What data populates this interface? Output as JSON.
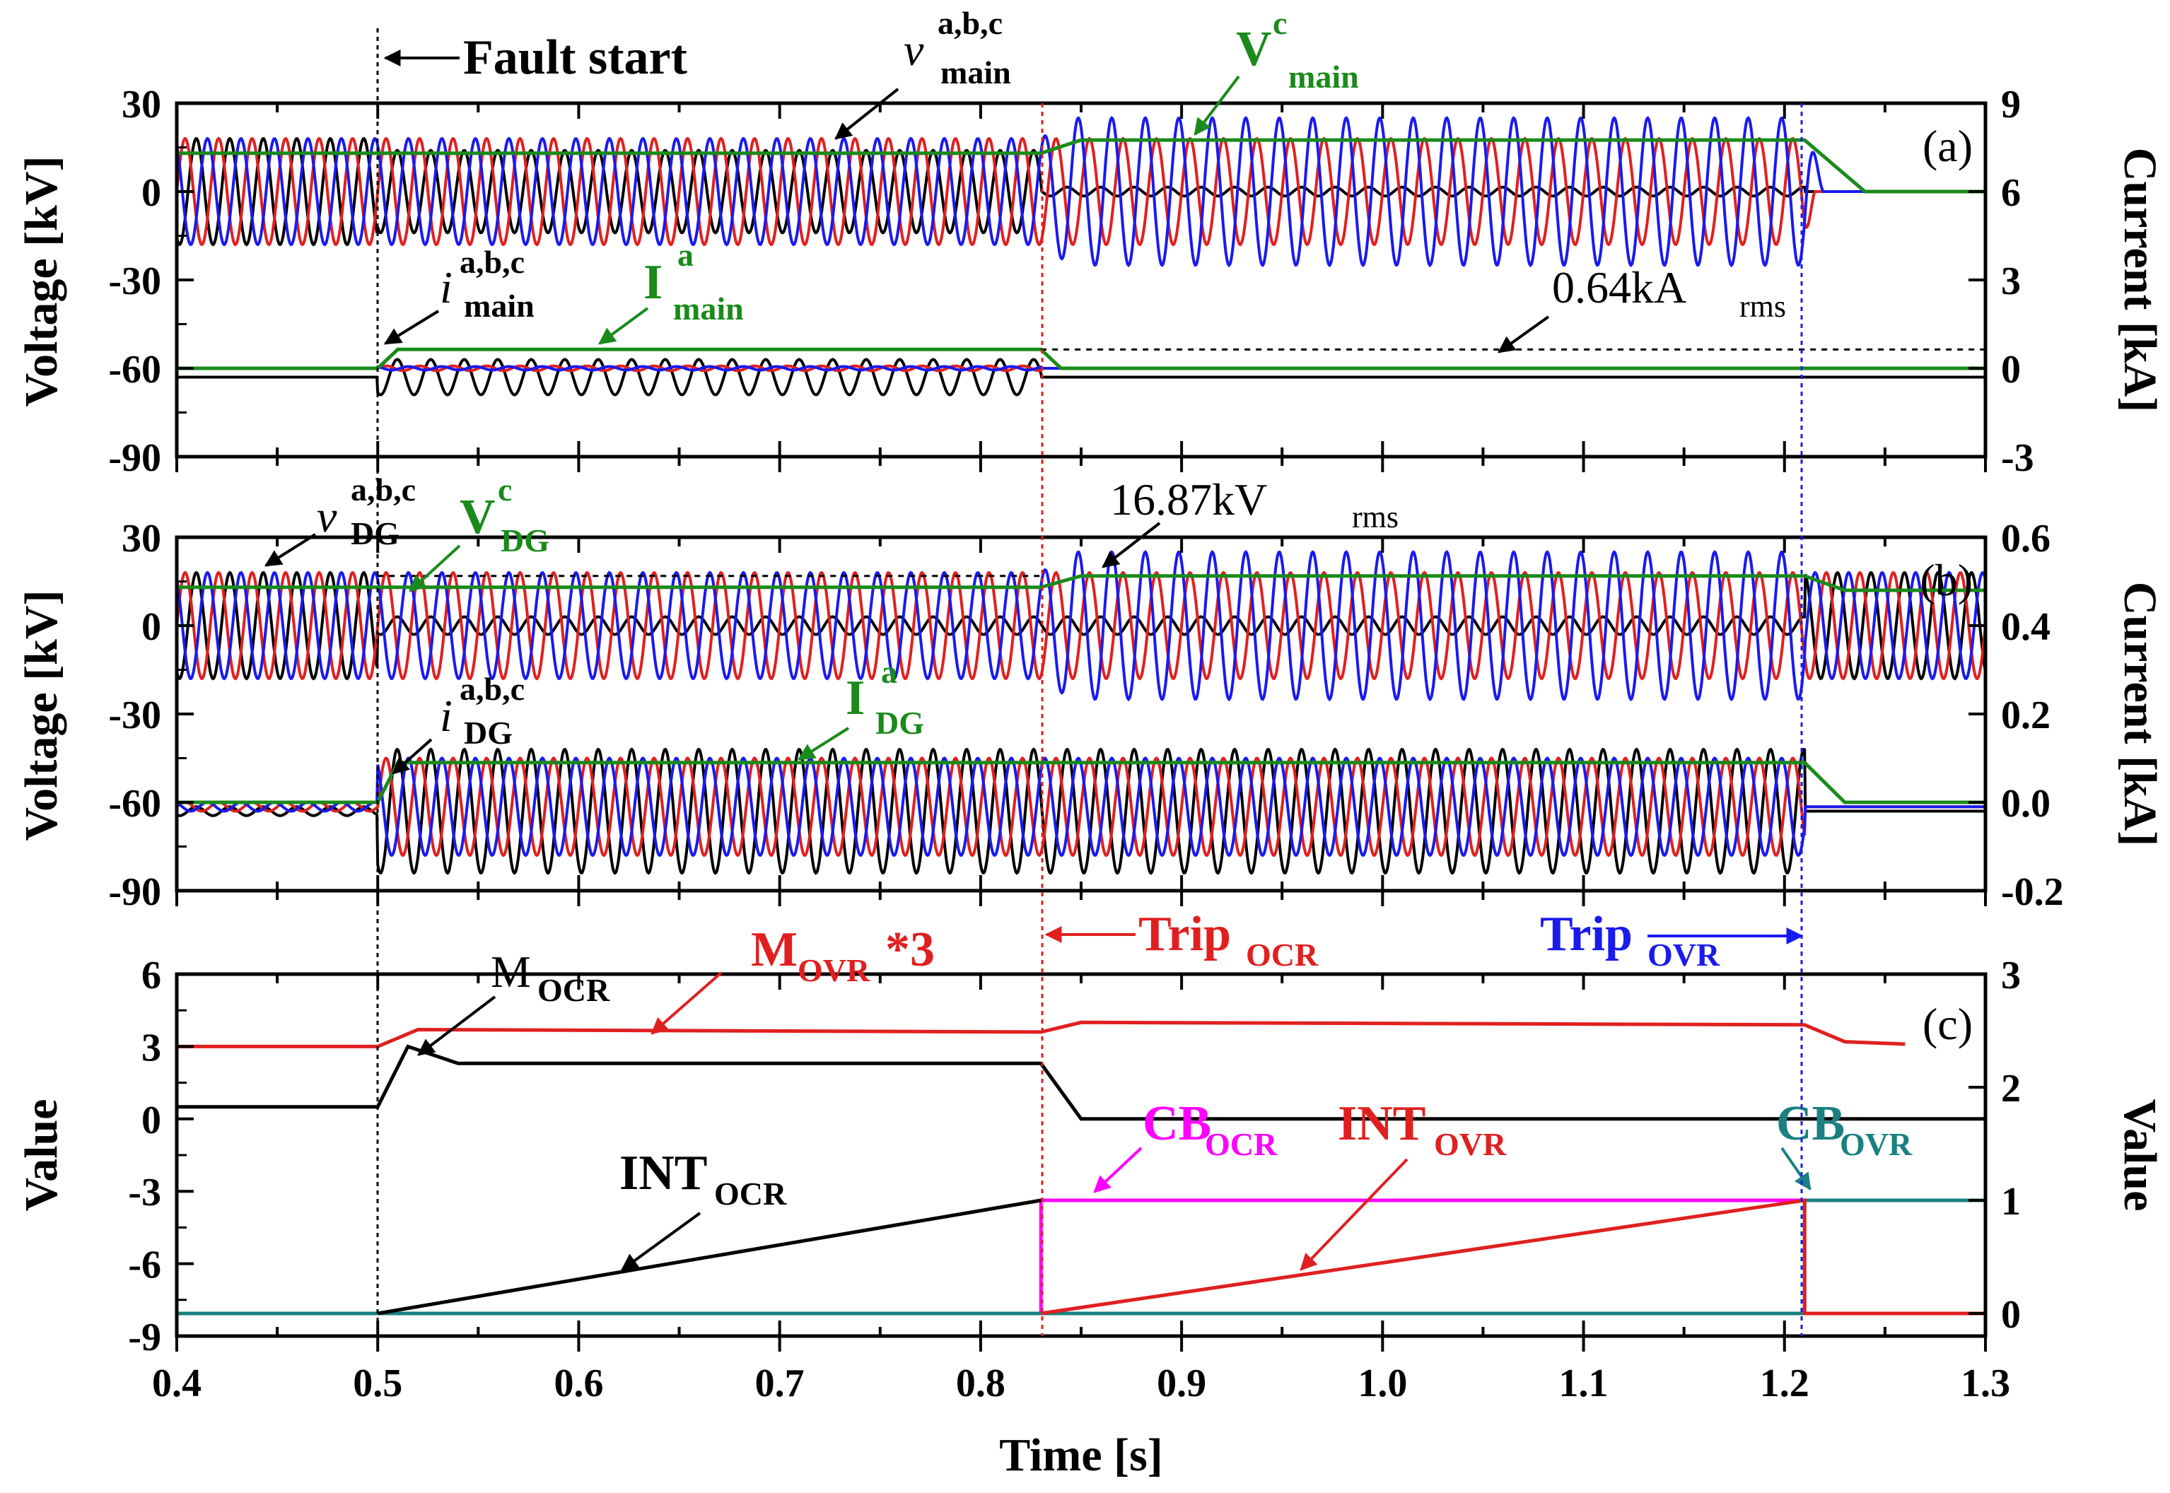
{
  "chart_data": [
    {
      "type": "line",
      "panel_label": "(a)",
      "xlabel": "Time [s]",
      "ylabel_left": "Voltage [kV]",
      "ylabel_right": "Current [kA]",
      "xlim": [
        0.4,
        1.3
      ],
      "ylim_left": [
        -90,
        30
      ],
      "ylim_right": [
        -3,
        9
      ],
      "yticks_left": [
        "30",
        "0",
        "-30",
        "-60",
        "-90"
      ],
      "yticks_right": [
        "9",
        "6",
        "3",
        "0",
        "-3"
      ],
      "annotations": {
        "fault_start": "Fault start",
        "v_main_sym": "v",
        "v_main_sup": "a,b,c",
        "v_main_sub": "main",
        "V_main_sym": "V",
        "V_main_sup": "c",
        "V_main_sub": "main",
        "i_main_sym": "i",
        "i_main_sup": "a,b,c",
        "i_main_sub": "main",
        "I_main_sym": "I",
        "I_main_sup": "a",
        "I_main_sub": "main",
        "rms_current": "0.64kA",
        "rms_sub": "rms"
      },
      "series": [
        {
          "name": "v_main a,b,c",
          "color": "#000000/#e02020/#1a1aee",
          "peak_kv": [
            18,
            18,
            25
          ],
          "segments": [
            "0.40-0.83: ±18 kV",
            "0.83-1.21: phase c ±25 kV, phase a ±18 kV, phase b ~0",
            "1.21-1.30: 0"
          ]
        },
        {
          "name": "V_main c (rms)",
          "color": "#1a8a1a",
          "values_kv": [
            [
              0.4,
              13
            ],
            [
              0.83,
              13
            ],
            [
              0.85,
              17.5
            ],
            [
              1.21,
              17.5
            ],
            [
              1.24,
              0
            ],
            [
              1.3,
              0
            ]
          ]
        },
        {
          "name": "i_main a,b,c",
          "color": "#000000/#e02020/#1a1aee",
          "axis": "right",
          "peak_ka": [
            0,
            0.9,
            0.9
          ],
          "segments": [
            "0.40-0.50: 0",
            "0.50-0.83: ±0.9 kA",
            "0.83-1.30: 0"
          ]
        },
        {
          "name": "I_main a (rms)",
          "color": "#1a8a1a",
          "axis": "right",
          "values_ka": [
            [
              0.4,
              0
            ],
            [
              0.5,
              0
            ],
            [
              0.51,
              0.64
            ],
            [
              0.83,
              0.64
            ],
            [
              0.84,
              0
            ],
            [
              1.3,
              0
            ]
          ]
        }
      ]
    },
    {
      "type": "line",
      "panel_label": "(b)",
      "xlabel": "Time [s]",
      "ylabel_left": "Voltage [kV]",
      "ylabel_right": "Current [kA]",
      "xlim": [
        0.4,
        1.3
      ],
      "ylim_left": [
        -90,
        30
      ],
      "ylim_right": [
        -0.2,
        0.6
      ],
      "yticks_left": [
        "30",
        "0",
        "-30",
        "-60",
        "-90"
      ],
      "yticks_right": [
        "0.6",
        "0.4",
        "0.2",
        "0.0",
        "-0.2"
      ],
      "annotations": {
        "v_dg_sym": "v",
        "v_dg_sup": "a,b,c",
        "v_dg_sub": "DG",
        "V_dg_sym": "V",
        "V_dg_sup": "c",
        "V_dg_sub": "DG",
        "rms_voltage": "16.87kV",
        "rms_sub": "rms",
        "i_dg_sym": "i",
        "i_dg_sup": "a,b,c",
        "i_dg_sub": "DG",
        "I_dg_sym": "I",
        "I_dg_sup": "a",
        "I_dg_sub": "DG"
      },
      "series": [
        {
          "name": "v_DG a,b,c",
          "color": "#000000/#e02020/#1a1aee",
          "peak_kv": [
            18,
            18,
            25
          ],
          "segments": [
            "0.40-0.83: ±18 kV",
            "0.83-1.21: phase c ±25 kV",
            "1.21-1.30: ±18 kV"
          ]
        },
        {
          "name": "V_DG c (rms)",
          "color": "#1a8a1a",
          "values_kv": [
            [
              0.4,
              13
            ],
            [
              0.83,
              13
            ],
            [
              0.85,
              16.87
            ],
            [
              1.21,
              16.87
            ],
            [
              1.23,
              12
            ],
            [
              1.3,
              12
            ]
          ]
        },
        {
          "name": "i_DG a,b,c",
          "color": "#000000/#e02020/#1a1aee",
          "axis": "right",
          "peak_ka": [
            0.14,
            0.11,
            0.11
          ],
          "segments": [
            "0.40-0.50: ±0.01 kA",
            "0.50-1.21: ±0.12 kA",
            "1.21-1.30: 0"
          ]
        },
        {
          "name": "I_DG a (rms)",
          "color": "#1a8a1a",
          "axis": "right",
          "values_ka": [
            [
              0.4,
              0.0
            ],
            [
              0.5,
              0.0
            ],
            [
              0.51,
              0.09
            ],
            [
              1.21,
              0.09
            ],
            [
              1.23,
              0.0
            ],
            [
              1.3,
              0.0
            ]
          ]
        }
      ]
    },
    {
      "type": "line",
      "panel_label": "(c)",
      "xlabel": "Time [s]",
      "ylabel_left": "Value",
      "ylabel_right": "Value",
      "xlim": [
        0.4,
        1.3
      ],
      "ylim_left": [
        -9,
        6
      ],
      "ylim_right": [
        -0.2,
        3
      ],
      "xticks": [
        "0.4",
        "0.5",
        "0.6",
        "0.7",
        "0.8",
        "0.9",
        "1.0",
        "1.1",
        "1.2",
        "1.3"
      ],
      "yticks_left": [
        "6",
        "3",
        "0",
        "-3",
        "-6",
        "-9"
      ],
      "yticks_right": [
        "3",
        "2",
        "1",
        "0"
      ],
      "annotations": {
        "M_ovr": "M",
        "M_ovr_sub": "OVR",
        "M_ovr_suffix": "*3",
        "M_ocr": "M",
        "M_ocr_sub": "OCR",
        "trip_ocr": "Trip",
        "trip_ocr_sub": "OCR",
        "trip_ovr": "Trip",
        "trip_ovr_sub": "OVR",
        "int_ocr": "INT",
        "int_ocr_sub": "OCR",
        "cb_ocr": "CB",
        "cb_ocr_sub": "OCR",
        "int_ovr": "INT",
        "int_ovr_sub": "OVR",
        "cb_ovr": "CB",
        "cb_ovr_sub": "OVR"
      },
      "series": [
        {
          "name": "M_OVR*3",
          "color": "#e02020",
          "values": [
            [
              0.4,
              3.0
            ],
            [
              0.5,
              3.0
            ],
            [
              0.52,
              3.7
            ],
            [
              0.83,
              3.6
            ],
            [
              0.85,
              4.0
            ],
            [
              1.21,
              3.9
            ],
            [
              1.23,
              3.2
            ],
            [
              1.26,
              3.1
            ]
          ]
        },
        {
          "name": "M_OCR",
          "color": "#000000",
          "values": [
            [
              0.4,
              0.5
            ],
            [
              0.5,
              0.5
            ],
            [
              0.515,
              3.0
            ],
            [
              0.54,
              2.3
            ],
            [
              0.83,
              2.3
            ],
            [
              0.85,
              0.0
            ],
            [
              1.3,
              0.0
            ]
          ]
        },
        {
          "name": "INT_OCR",
          "color": "#000000",
          "axis": "right",
          "values": [
            [
              0.5,
              0.0
            ],
            [
              0.83,
              1.0
            ]
          ]
        },
        {
          "name": "CB_OCR",
          "color": "#ff00ff",
          "axis": "right",
          "values": [
            [
              0.4,
              0
            ],
            [
              0.83,
              0
            ],
            [
              0.83,
              1
            ],
            [
              1.21,
              1
            ]
          ]
        },
        {
          "name": "INT_OVR",
          "color": "#e02020",
          "axis": "right",
          "values": [
            [
              0.83,
              0.0
            ],
            [
              1.21,
              1.0
            ],
            [
              1.21,
              0.0
            ],
            [
              1.3,
              0.0
            ]
          ]
        },
        {
          "name": "CB_OVR",
          "color": "#1a8080",
          "axis": "right",
          "values": [
            [
              0.4,
              0
            ],
            [
              1.21,
              0
            ],
            [
              1.21,
              1
            ],
            [
              1.3,
              1
            ]
          ]
        }
      ]
    }
  ],
  "colors": {
    "phase_a": "#e02020",
    "phase_b": "#000000",
    "phase_c": "#1a1aee",
    "rms": "#1a8a1a",
    "cb_ocr": "#ff00ff",
    "cb_ovr": "#1a8080",
    "fault_line": "#000000",
    "trip_ocr_line": "#e02020",
    "trip_ovr_line": "#1a1aee"
  }
}
